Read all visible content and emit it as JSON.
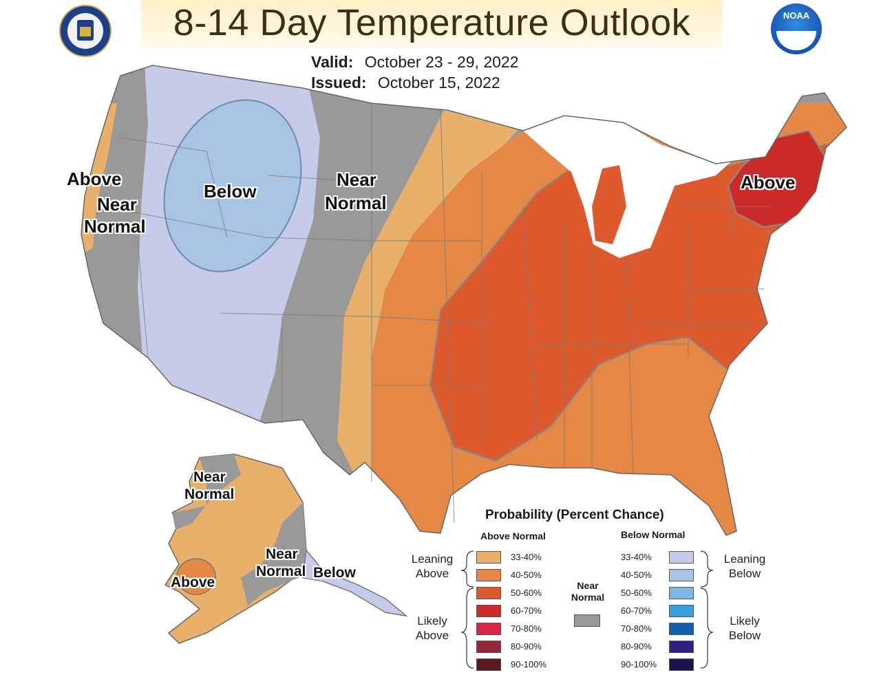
{
  "header": {
    "title": "8-14 Day Temperature Outlook",
    "valid_label": "Valid:",
    "valid_value": "October 23 - 29, 2022",
    "issued_label": "Issued:",
    "issued_value": "October 15, 2022"
  },
  "logos": {
    "left": "department-of-commerce-seal",
    "right": "noaa-logo",
    "right_text": "NOAA"
  },
  "map_labels": {
    "west_coast_above": "Above",
    "west_coast_near_1": "Near",
    "west_coast_near_2": "Normal",
    "northwest_below": "Below",
    "plains_near_1": "Near",
    "plains_near_2": "Normal",
    "northeast_above": "Above",
    "alaska_near_1": "Near",
    "alaska_near_2": "Normal",
    "alaska_above": "Above",
    "alaska_se_near_1": "Near",
    "alaska_se_near_2": "Normal",
    "alaska_below": "Below"
  },
  "legend": {
    "title": "Probability (Percent Chance)",
    "above_header": "Above Normal",
    "below_header": "Below Normal",
    "near_header_1": "Near",
    "near_header_2": "Normal",
    "near_color": "#999999",
    "leaning_above_1": "Leaning",
    "leaning_above_2": "Above",
    "likely_above_1": "Likely",
    "likely_above_2": "Above",
    "leaning_below_1": "Leaning",
    "leaning_below_2": "Below",
    "likely_below_1": "Likely",
    "likely_below_2": "Below",
    "above": [
      {
        "label": "33-40%",
        "color": "#e8b06a"
      },
      {
        "label": "40-50%",
        "color": "#e58845"
      },
      {
        "label": "50-60%",
        "color": "#dd5a2e"
      },
      {
        "label": "60-70%",
        "color": "#cc2a28"
      },
      {
        "label": "70-80%",
        "color": "#d8264a"
      },
      {
        "label": "80-90%",
        "color": "#94283a"
      },
      {
        "label": "90-100%",
        "color": "#5a1a20"
      }
    ],
    "below": [
      {
        "label": "33-40%",
        "color": "#c5cbe8"
      },
      {
        "label": "40-50%",
        "color": "#a7c4e4"
      },
      {
        "label": "50-60%",
        "color": "#7fb6e6"
      },
      {
        "label": "60-70%",
        "color": "#36a0e0"
      },
      {
        "label": "70-80%",
        "color": "#1060aa"
      },
      {
        "label": "80-90%",
        "color": "#2c2380"
      },
      {
        "label": "90-100%",
        "color": "#1a1550"
      }
    ]
  }
}
